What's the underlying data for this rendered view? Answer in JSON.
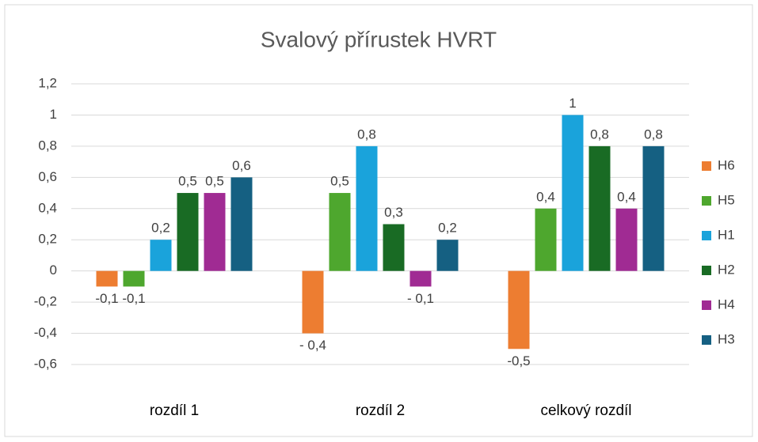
{
  "chart_data": {
    "type": "bar",
    "title": "Svalový přírustek HVRT",
    "categories": [
      "rozdíl 1",
      "rozdíl 2",
      "celkový rozdíl"
    ],
    "series": [
      {
        "name": "H6",
        "color": "#ED7D31",
        "values": [
          -0.1,
          -0.4,
          -0.5
        ],
        "value_labels": [
          "-0,1",
          "- 0,4",
          "-0,5"
        ]
      },
      {
        "name": "H5",
        "color": "#4EA72E",
        "values": [
          -0.1,
          0.5,
          0.4
        ],
        "value_labels": [
          "-0,1",
          "0,5",
          "0,4"
        ]
      },
      {
        "name": "H1",
        "color": "#1AA3DB",
        "values": [
          0.2,
          0.8,
          1
        ],
        "value_labels": [
          "0,2",
          "0,8",
          "1"
        ]
      },
      {
        "name": "H2",
        "color": "#196B24",
        "values": [
          0.5,
          0.3,
          0.8
        ],
        "value_labels": [
          "0,5",
          "0,3",
          "0,8"
        ]
      },
      {
        "name": "H4",
        "color": "#A02B93",
        "values": [
          0.5,
          -0.1,
          0.4
        ],
        "value_labels": [
          "0,5",
          "- 0,1",
          "0,4"
        ]
      },
      {
        "name": "H3",
        "color": "#156082",
        "values": [
          0.6,
          0.2,
          0.8
        ],
        "value_labels": [
          "0,6",
          "0,2",
          "0,8"
        ]
      }
    ],
    "ylim": [
      -0.6,
      1.2
    ],
    "yticks": [
      {
        "value": -0.6,
        "label": "-0,6"
      },
      {
        "value": -0.4,
        "label": "-0,4"
      },
      {
        "value": -0.2,
        "label": "-0,2"
      },
      0,
      {
        "value": 0.2,
        "label": "0,2"
      },
      {
        "value": 0.4,
        "label": "0,4"
      },
      {
        "value": 0.6,
        "label": "0,6"
      },
      {
        "value": 0.8,
        "label": "0,8"
      },
      1,
      {
        "value": 1.2,
        "label": "1,2"
      }
    ],
    "grid": true,
    "legend": "right"
  }
}
